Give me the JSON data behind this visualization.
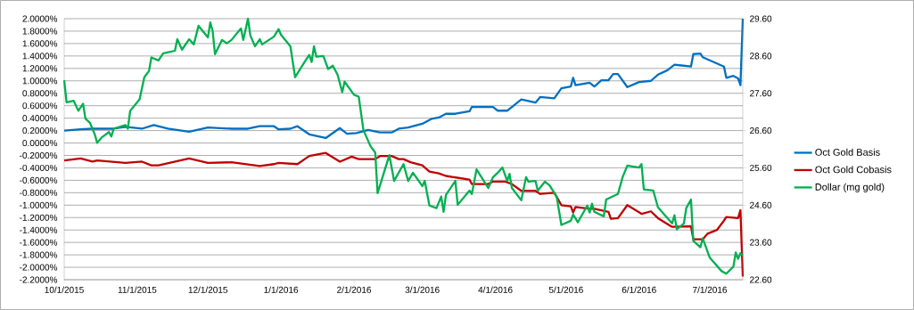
{
  "chart_data": {
    "type": "line",
    "xlim": [
      "2015-10-01",
      "2016-07-15"
    ],
    "xticks": [
      {
        "value": "2015-10-01",
        "label": "10/1/2015"
      },
      {
        "value": "2015-11-01",
        "label": "11/1/2015"
      },
      {
        "value": "2015-12-01",
        "label": "12/1/2015"
      },
      {
        "value": "2016-01-01",
        "label": "1/1/2016"
      },
      {
        "value": "2016-02-01",
        "label": "2/1/2016"
      },
      {
        "value": "2016-03-01",
        "label": "3/1/2016"
      },
      {
        "value": "2016-04-01",
        "label": "4/1/2016"
      },
      {
        "value": "2016-05-01",
        "label": "5/1/2016"
      },
      {
        "value": "2016-06-01",
        "label": "6/1/2016"
      },
      {
        "value": "2016-07-01",
        "label": "7/1/2016"
      }
    ],
    "ylim": [
      -2.2,
      2.0
    ],
    "yticks": [
      {
        "value": -2.2,
        "label": "-2.2000%"
      },
      {
        "value": -2.0,
        "label": "-2.0000%"
      },
      {
        "value": -1.8,
        "label": "-1.8000%"
      },
      {
        "value": -1.6,
        "label": "-1.6000%"
      },
      {
        "value": -1.4,
        "label": "-1.4000%"
      },
      {
        "value": -1.2,
        "label": "-1.2000%"
      },
      {
        "value": -1.0,
        "label": "-1.0000%"
      },
      {
        "value": -0.8,
        "label": "-0.8000%"
      },
      {
        "value": -0.6,
        "label": "-0.6000%"
      },
      {
        "value": -0.4,
        "label": "-0.4000%"
      },
      {
        "value": -0.2,
        "label": "-0.2000%"
      },
      {
        "value": 0.0,
        "label": "0.0000%"
      },
      {
        "value": 0.2,
        "label": "0.2000%"
      },
      {
        "value": 0.4,
        "label": "0.4000%"
      },
      {
        "value": 0.6,
        "label": "0.6000%"
      },
      {
        "value": 0.8,
        "label": "0.8000%"
      },
      {
        "value": 1.0,
        "label": "1.0000%"
      },
      {
        "value": 1.2,
        "label": "1.2000%"
      },
      {
        "value": 1.4,
        "label": "1.4000%"
      },
      {
        "value": 1.6,
        "label": "1.6000%"
      },
      {
        "value": 1.8,
        "label": "1.8000%"
      },
      {
        "value": 2.0,
        "label": "2.0000%"
      }
    ],
    "y2lim": [
      22.6,
      29.6
    ],
    "y2ticks": [
      {
        "value": 22.6,
        "label": "22.60"
      },
      {
        "value": 23.6,
        "label": "23.60"
      },
      {
        "value": 24.6,
        "label": "24.60"
      },
      {
        "value": 25.6,
        "label": "25.60"
      },
      {
        "value": 26.6,
        "label": "26.60"
      },
      {
        "value": 27.6,
        "label": "27.60"
      },
      {
        "value": 28.6,
        "label": "28.60"
      },
      {
        "value": 29.6,
        "label": "29.60"
      }
    ],
    "grid": "y",
    "legend": "right",
    "series": [
      {
        "name": "Oct Gold Basis",
        "color": "#0070c0",
        "x": [
          "2015-10-01",
          "2015-10-08",
          "2015-10-13",
          "2015-10-22",
          "2015-10-27",
          "2015-11-03",
          "2015-11-08",
          "2015-11-14",
          "2015-11-23",
          "2015-12-01",
          "2015-12-11",
          "2015-12-18",
          "2015-12-23",
          "2015-12-29",
          "2015-12-31",
          "2016-01-05",
          "2016-01-08",
          "2016-01-13",
          "2016-01-20",
          "2016-01-26",
          "2016-01-29",
          "2016-02-02",
          "2016-02-07",
          "2016-02-12",
          "2016-02-17",
          "2016-02-20",
          "2016-02-24",
          "2016-03-01",
          "2016-03-05",
          "2016-03-08",
          "2016-03-11",
          "2016-03-15",
          "2016-03-21",
          "2016-03-22",
          "2016-03-31",
          "2016-04-02",
          "2016-04-06",
          "2016-04-08",
          "2016-04-12",
          "2016-04-18",
          "2016-04-20",
          "2016-04-26",
          "2016-04-29",
          "2016-05-03",
          "2016-05-04",
          "2016-05-05",
          "2016-05-11",
          "2016-05-13",
          "2016-05-16",
          "2016-05-19",
          "2016-05-21",
          "2016-05-23",
          "2016-05-27",
          "2016-06-01",
          "2016-06-06",
          "2016-06-09",
          "2016-06-13",
          "2016-06-16",
          "2016-06-23",
          "2016-06-24",
          "2016-06-27",
          "2016-06-28",
          "2016-07-04",
          "2016-07-07",
          "2016-07-08",
          "2016-07-11",
          "2016-07-13",
          "2016-07-14",
          "2016-07-15"
        ],
        "values": [
          0.2,
          0.22,
          0.23,
          0.23,
          0.26,
          0.23,
          0.29,
          0.23,
          0.18,
          0.25,
          0.23,
          0.23,
          0.27,
          0.27,
          0.22,
          0.23,
          0.27,
          0.14,
          0.08,
          0.24,
          0.15,
          0.16,
          0.21,
          0.17,
          0.17,
          0.23,
          0.25,
          0.31,
          0.39,
          0.41,
          0.47,
          0.47,
          0.51,
          0.58,
          0.58,
          0.52,
          0.52,
          0.58,
          0.7,
          0.65,
          0.74,
          0.72,
          0.88,
          0.91,
          1.05,
          0.93,
          0.97,
          0.91,
          1.01,
          1.01,
          1.11,
          1.11,
          0.9,
          0.98,
          1.0,
          1.1,
          1.17,
          1.26,
          1.23,
          1.43,
          1.44,
          1.38,
          1.28,
          1.23,
          1.05,
          1.08,
          1.04,
          0.93,
          2.0
        ]
      },
      {
        "name": "Oct Gold Cobasis",
        "color": "#c00000",
        "x": [
          "2015-10-01",
          "2015-10-08",
          "2015-10-13",
          "2015-10-15",
          "2015-10-27",
          "2015-11-03",
          "2015-11-07",
          "2015-11-10",
          "2015-11-23",
          "2015-12-01",
          "2015-12-11",
          "2015-12-23",
          "2015-12-29",
          "2015-12-31",
          "2016-01-08",
          "2016-01-13",
          "2016-01-20",
          "2016-01-26",
          "2016-01-31",
          "2016-02-03",
          "2016-02-10",
          "2016-02-12",
          "2016-02-17",
          "2016-02-20",
          "2016-02-22",
          "2016-02-25",
          "2016-03-01",
          "2016-03-04",
          "2016-03-08",
          "2016-03-11",
          "2016-03-16",
          "2016-03-21",
          "2016-03-22",
          "2016-03-29",
          "2016-03-31",
          "2016-04-05",
          "2016-04-08",
          "2016-04-12",
          "2016-04-18",
          "2016-04-20",
          "2016-04-26",
          "2016-04-29",
          "2016-05-03",
          "2016-05-04",
          "2016-05-05",
          "2016-05-11",
          "2016-05-13",
          "2016-05-19",
          "2016-05-20",
          "2016-05-23",
          "2016-05-27",
          "2016-06-02",
          "2016-06-06",
          "2016-06-09",
          "2016-06-15",
          "2016-06-23",
          "2016-06-24",
          "2016-06-28",
          "2016-06-30",
          "2016-07-04",
          "2016-07-07",
          "2016-07-08",
          "2016-07-13",
          "2016-07-14",
          "2016-07-15"
        ],
        "values": [
          -0.28,
          -0.25,
          -0.3,
          -0.28,
          -0.32,
          -0.3,
          -0.36,
          -0.36,
          -0.25,
          -0.32,
          -0.31,
          -0.37,
          -0.34,
          -0.32,
          -0.34,
          -0.21,
          -0.16,
          -0.3,
          -0.22,
          -0.26,
          -0.26,
          -0.21,
          -0.21,
          -0.26,
          -0.26,
          -0.31,
          -0.36,
          -0.46,
          -0.49,
          -0.53,
          -0.56,
          -0.59,
          -0.66,
          -0.66,
          -0.62,
          -0.62,
          -0.66,
          -0.77,
          -0.77,
          -0.82,
          -0.8,
          -1.0,
          -1.02,
          -1.12,
          -1.03,
          -1.06,
          -1.06,
          -1.11,
          -1.22,
          -1.21,
          -1.0,
          -1.14,
          -1.1,
          -1.21,
          -1.35,
          -1.34,
          -1.55,
          -1.55,
          -1.46,
          -1.4,
          -1.25,
          -1.19,
          -1.21,
          -1.08,
          -2.15
        ]
      },
      {
        "name": "Dollar (mg gold)",
        "color": "#00b050",
        "axis": "y2",
        "x": [
          "2015-10-01",
          "2015-10-02",
          "2015-10-05",
          "2015-10-07",
          "2015-10-09",
          "2015-10-10",
          "2015-10-12",
          "2015-10-14",
          "2015-10-15",
          "2015-10-17",
          "2015-10-20",
          "2015-10-21",
          "2015-10-22",
          "2015-10-27",
          "2015-10-28",
          "2015-10-29",
          "2015-11-02",
          "2015-11-04",
          "2015-11-06",
          "2015-11-07",
          "2015-11-10",
          "2015-11-12",
          "2015-11-17",
          "2015-11-18",
          "2015-11-20",
          "2015-11-23",
          "2015-11-25",
          "2015-11-27",
          "2015-12-01",
          "2015-12-02",
          "2015-12-03",
          "2015-12-04",
          "2015-12-07",
          "2015-12-09",
          "2015-12-11",
          "2015-12-15",
          "2015-12-16",
          "2015-12-18",
          "2015-12-19",
          "2015-12-21",
          "2015-12-23",
          "2015-12-24",
          "2015-12-29",
          "2015-12-31",
          "2016-01-01",
          "2016-01-05",
          "2016-01-07",
          "2016-01-11",
          "2016-01-13",
          "2016-01-14",
          "2016-01-15",
          "2016-01-16",
          "2016-01-19",
          "2016-01-21",
          "2016-01-23",
          "2016-01-25",
          "2016-01-27",
          "2016-01-28",
          "2016-02-01",
          "2016-02-03",
          "2016-02-05",
          "2016-02-08",
          "2016-02-10",
          "2016-02-11",
          "2016-02-16",
          "2016-02-18",
          "2016-02-22",
          "2016-02-24",
          "2016-02-26",
          "2016-03-01",
          "2016-03-02",
          "2016-03-04",
          "2016-03-07",
          "2016-03-09",
          "2016-03-10",
          "2016-03-11",
          "2016-03-15",
          "2016-03-16",
          "2016-03-21",
          "2016-03-22",
          "2016-03-24",
          "2016-03-29",
          "2016-03-31",
          "2016-04-02",
          "2016-04-04",
          "2016-04-06",
          "2016-04-07",
          "2016-04-08",
          "2016-04-12",
          "2016-04-14",
          "2016-04-15",
          "2016-04-18",
          "2016-04-19",
          "2016-04-22",
          "2016-04-24",
          "2016-04-27",
          "2016-04-29",
          "2016-05-03",
          "2016-05-04",
          "2016-05-06",
          "2016-05-10",
          "2016-05-11",
          "2016-05-12",
          "2016-05-13",
          "2016-05-17",
          "2016-05-18",
          "2016-05-23",
          "2016-05-25",
          "2016-05-27",
          "2016-06-01",
          "2016-06-02",
          "2016-06-03",
          "2016-06-07",
          "2016-06-09",
          "2016-06-15",
          "2016-06-16",
          "2016-06-17",
          "2016-06-20",
          "2016-06-21",
          "2016-06-23",
          "2016-06-24",
          "2016-06-27",
          "2016-06-28",
          "2016-07-01",
          "2016-07-06",
          "2016-07-08",
          "2016-07-11",
          "2016-07-12",
          "2016-07-13",
          "2016-07-14",
          "2016-07-15"
        ],
        "values": [
          27.95,
          27.36,
          27.4,
          27.13,
          27.32,
          26.92,
          26.8,
          26.49,
          26.27,
          26.42,
          26.56,
          26.44,
          26.65,
          26.75,
          26.65,
          27.13,
          27.44,
          28.03,
          28.2,
          28.56,
          28.48,
          28.67,
          28.74,
          29.05,
          28.77,
          29.05,
          28.91,
          29.41,
          29.1,
          29.5,
          29.27,
          28.65,
          29.03,
          28.94,
          29.03,
          29.34,
          29.03,
          29.6,
          29.15,
          28.86,
          29.05,
          28.91,
          29.12,
          29.32,
          29.17,
          28.86,
          28.03,
          28.44,
          28.63,
          28.44,
          28.86,
          28.58,
          28.6,
          28.25,
          28.34,
          28.1,
          27.63,
          27.91,
          27.56,
          27.51,
          26.61,
          26.18,
          26.01,
          24.92,
          25.94,
          25.25,
          25.7,
          25.25,
          25.47,
          25.11,
          25.25,
          24.59,
          24.52,
          24.83,
          24.42,
          24.87,
          25.25,
          24.61,
          24.99,
          24.9,
          25.56,
          25.06,
          25.35,
          25.47,
          25.61,
          25.25,
          25.44,
          25.06,
          24.73,
          25.35,
          25.23,
          25.25,
          24.99,
          25.23,
          25.13,
          24.83,
          24.07,
          24.18,
          24.35,
          24.14,
          24.59,
          24.4,
          24.64,
          24.42,
          24.3,
          24.75,
          24.9,
          25.35,
          25.66,
          25.61,
          25.7,
          25.02,
          24.99,
          24.54,
          24.11,
          24.33,
          23.95,
          24.11,
          24.52,
          24.75,
          23.64,
          23.47,
          23.71,
          23.19,
          22.83,
          22.76,
          22.95,
          23.33,
          23.16,
          23.31,
          23.26
        ]
      }
    ]
  }
}
